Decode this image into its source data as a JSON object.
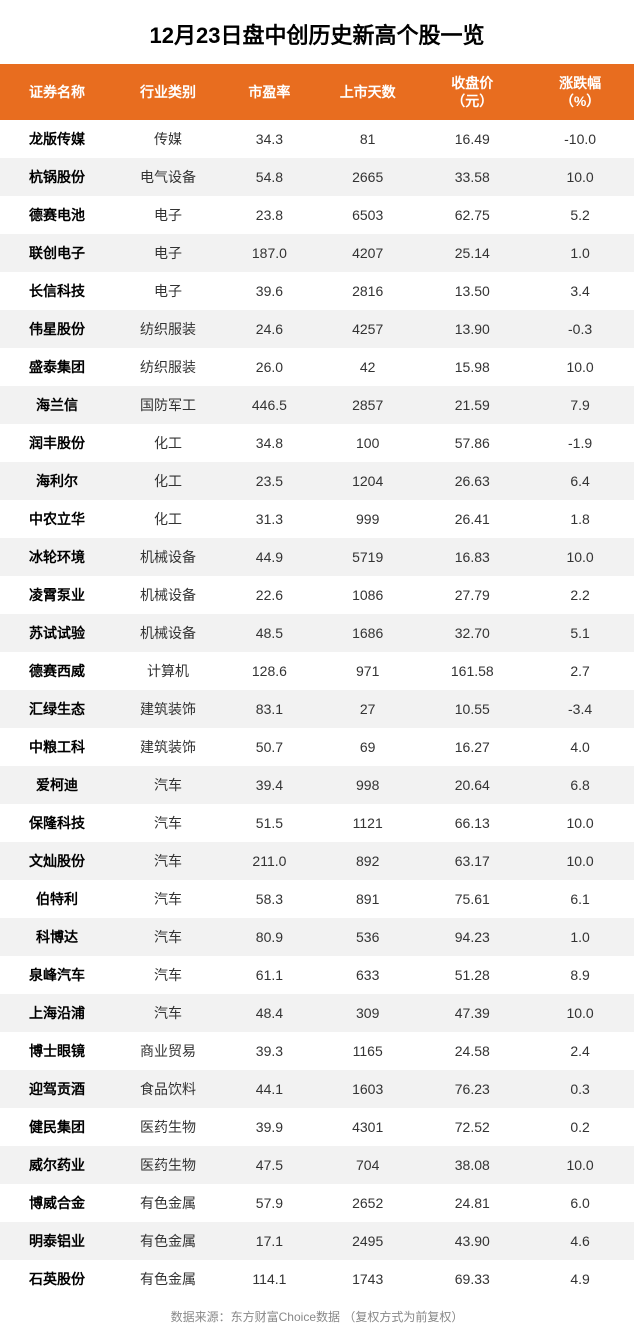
{
  "title": "12月23日盘中创历史新高个股一览",
  "header_bg": "#e86d1f",
  "header_color": "#ffffff",
  "row_odd_bg": "#ffffff",
  "row_even_bg": "#f2f2f2",
  "text_color": "#333333",
  "columns": [
    "证券名称",
    "行业类别",
    "市盈率",
    "上市天数",
    "收盘价\n（元）",
    "涨跌幅\n（%）"
  ],
  "col_widths": [
    "18%",
    "17%",
    "15%",
    "16%",
    "17%",
    "17%"
  ],
  "rows": [
    [
      "龙版传媒",
      "传媒",
      "34.3",
      "81",
      "16.49",
      "-10.0"
    ],
    [
      "杭锅股份",
      "电气设备",
      "54.8",
      "2665",
      "33.58",
      "10.0"
    ],
    [
      "德赛电池",
      "电子",
      "23.8",
      "6503",
      "62.75",
      "5.2"
    ],
    [
      "联创电子",
      "电子",
      "187.0",
      "4207",
      "25.14",
      "1.0"
    ],
    [
      "长信科技",
      "电子",
      "39.6",
      "2816",
      "13.50",
      "3.4"
    ],
    [
      "伟星股份",
      "纺织服装",
      "24.6",
      "4257",
      "13.90",
      "-0.3"
    ],
    [
      "盛泰集团",
      "纺织服装",
      "26.0",
      "42",
      "15.98",
      "10.0"
    ],
    [
      "海兰信",
      "国防军工",
      "446.5",
      "2857",
      "21.59",
      "7.9"
    ],
    [
      "润丰股份",
      "化工",
      "34.8",
      "100",
      "57.86",
      "-1.9"
    ],
    [
      "海利尔",
      "化工",
      "23.5",
      "1204",
      "26.63",
      "6.4"
    ],
    [
      "中农立华",
      "化工",
      "31.3",
      "999",
      "26.41",
      "1.8"
    ],
    [
      "冰轮环境",
      "机械设备",
      "44.9",
      "5719",
      "16.83",
      "10.0"
    ],
    [
      "凌霄泵业",
      "机械设备",
      "22.6",
      "1086",
      "27.79",
      "2.2"
    ],
    [
      "苏试试验",
      "机械设备",
      "48.5",
      "1686",
      "32.70",
      "5.1"
    ],
    [
      "德赛西威",
      "计算机",
      "128.6",
      "971",
      "161.58",
      "2.7"
    ],
    [
      "汇绿生态",
      "建筑装饰",
      "83.1",
      "27",
      "10.55",
      "-3.4"
    ],
    [
      "中粮工科",
      "建筑装饰",
      "50.7",
      "69",
      "16.27",
      "4.0"
    ],
    [
      "爱柯迪",
      "汽车",
      "39.4",
      "998",
      "20.64",
      "6.8"
    ],
    [
      "保隆科技",
      "汽车",
      "51.5",
      "1121",
      "66.13",
      "10.0"
    ],
    [
      "文灿股份",
      "汽车",
      "211.0",
      "892",
      "63.17",
      "10.0"
    ],
    [
      "伯特利",
      "汽车",
      "58.3",
      "891",
      "75.61",
      "6.1"
    ],
    [
      "科博达",
      "汽车",
      "80.9",
      "536",
      "94.23",
      "1.0"
    ],
    [
      "泉峰汽车",
      "汽车",
      "61.1",
      "633",
      "51.28",
      "8.9"
    ],
    [
      "上海沿浦",
      "汽车",
      "48.4",
      "309",
      "47.39",
      "10.0"
    ],
    [
      "博士眼镜",
      "商业贸易",
      "39.3",
      "1165",
      "24.58",
      "2.4"
    ],
    [
      "迎驾贡酒",
      "食品饮料",
      "44.1",
      "1603",
      "76.23",
      "0.3"
    ],
    [
      "健民集团",
      "医药生物",
      "39.9",
      "4301",
      "72.52",
      "0.2"
    ],
    [
      "威尔药业",
      "医药生物",
      "47.5",
      "704",
      "38.08",
      "10.0"
    ],
    [
      "博威合金",
      "有色金属",
      "57.9",
      "2652",
      "24.81",
      "6.0"
    ],
    [
      "明泰铝业",
      "有色金属",
      "17.1",
      "2495",
      "43.90",
      "4.6"
    ],
    [
      "石英股份",
      "有色金属",
      "114.1",
      "1743",
      "69.33",
      "4.9"
    ]
  ],
  "footer": "数据来源：东方财富Choice数据 （复权方式为前复权）",
  "watermark": "东方财富Choice数据"
}
